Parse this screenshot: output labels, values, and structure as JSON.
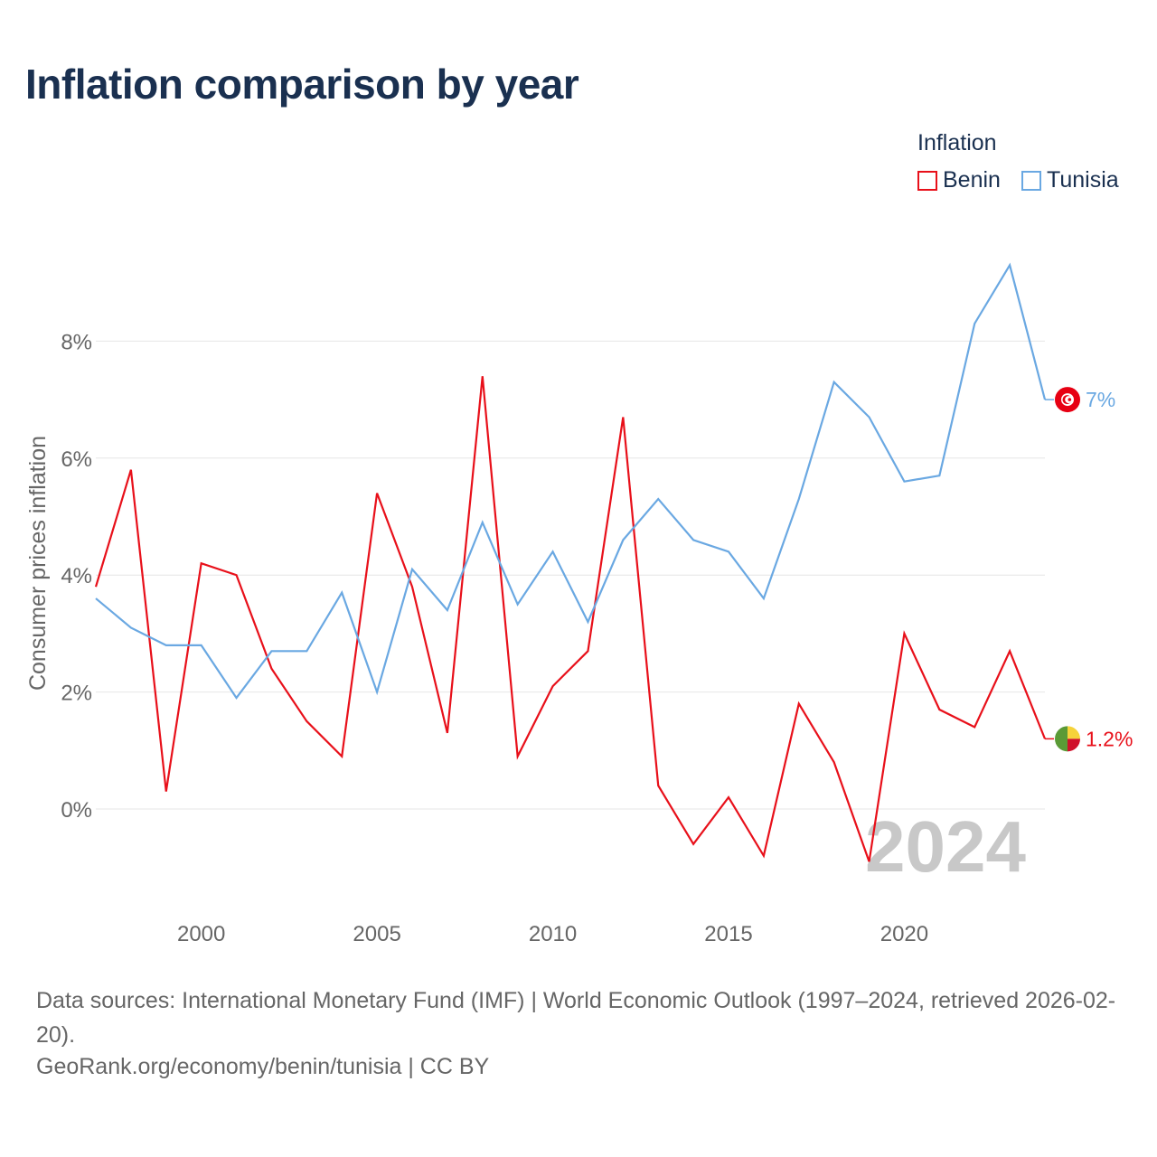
{
  "title": "Inflation comparison by year",
  "legend": {
    "title": "Inflation",
    "items": [
      {
        "name": "Benin",
        "color": "#e8101a"
      },
      {
        "name": "Tunisia",
        "color": "#6aa8e2"
      }
    ]
  },
  "watermark_year": "2024",
  "footer": {
    "sources": "Data sources: International Monetary Fund (IMF) | World Economic Outlook (1997–2024, retrieved 2026-02-20).",
    "site": "GeoRank.org/economy/benin/tunisia | CC BY"
  },
  "chart_data": {
    "type": "line",
    "title": "Inflation comparison by year",
    "xlabel": "",
    "ylabel": "Consumer prices inflation",
    "xlim": [
      1997,
      2024
    ],
    "ylim": [
      -1.8,
      9.8
    ],
    "x_ticks": [
      2000,
      2005,
      2010,
      2015,
      2020
    ],
    "y_ticks": [
      0,
      2,
      4,
      6,
      8
    ],
    "y_tick_labels": [
      "0%",
      "2%",
      "4%",
      "6%",
      "8%"
    ],
    "grid": true,
    "x": [
      1997,
      1998,
      1999,
      2000,
      2001,
      2002,
      2003,
      2004,
      2005,
      2006,
      2007,
      2008,
      2009,
      2010,
      2011,
      2012,
      2013,
      2014,
      2015,
      2016,
      2017,
      2018,
      2019,
      2020,
      2021,
      2022,
      2023,
      2024
    ],
    "series": [
      {
        "name": "Benin",
        "color": "#e8101a",
        "end_label": "1.2%",
        "values": [
          3.8,
          5.8,
          0.3,
          4.2,
          4.0,
          2.4,
          1.5,
          0.9,
          5.4,
          3.8,
          1.3,
          7.4,
          0.9,
          2.1,
          2.7,
          6.7,
          0.4,
          -0.6,
          0.2,
          -0.8,
          1.8,
          0.8,
          -0.9,
          3.0,
          1.7,
          1.4,
          2.7,
          1.2
        ]
      },
      {
        "name": "Tunisia",
        "color": "#6aa8e2",
        "end_label": "7%",
        "values": [
          3.6,
          3.1,
          2.8,
          2.8,
          1.9,
          2.7,
          2.7,
          3.7,
          2.0,
          4.1,
          3.4,
          4.9,
          3.5,
          4.4,
          3.2,
          4.6,
          5.3,
          4.6,
          4.4,
          3.6,
          5.3,
          7.3,
          6.7,
          5.6,
          5.7,
          8.3,
          9.3,
          7.0
        ]
      }
    ]
  }
}
